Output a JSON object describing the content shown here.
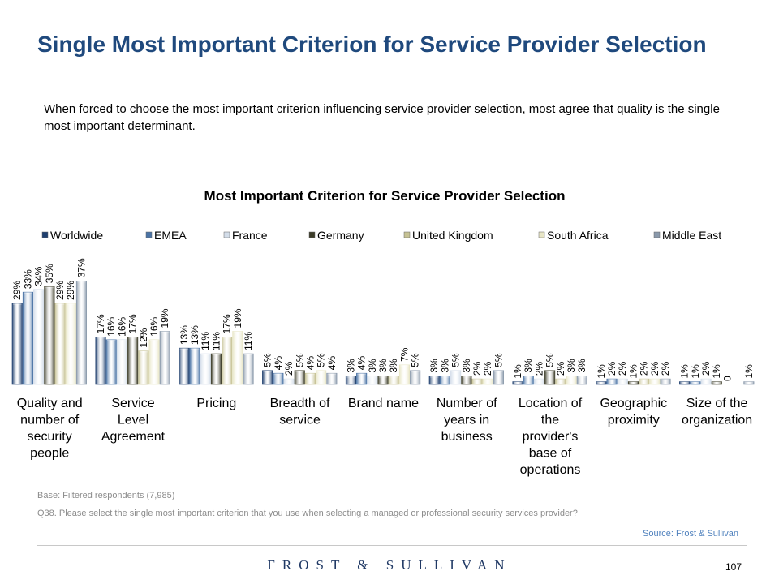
{
  "page": {
    "title": "Single Most Important Criterion for Service Provider Selection",
    "subtitle": "When forced to choose the most important criterion influencing service provider selection, most agree that quality is the single most important determinant.",
    "base_note": "Base: Filtered respondents (7,985)",
    "question_note": "Q38. Please select the single most important criterion that you use when  selecting a managed or professional security services provider?",
    "source": "Source: Frost & Sullivan",
    "brand": "FROST & SULLIVAN",
    "page_number": "107"
  },
  "chart_data": {
    "type": "bar",
    "title": "Most Important Criterion for Service Provider Selection",
    "categories": [
      "Quality and number of security people",
      "Service Level Agreement",
      "Pricing",
      "Breadth of service",
      "Brand name",
      "Number of years in business",
      "Location of the provider's base of operations",
      "Geographic proximity",
      "Size of the organization"
    ],
    "category_lines": [
      [
        "Quality and",
        "number of",
        "security",
        "people"
      ],
      [
        "Service",
        "Level",
        "Agreement"
      ],
      [
        "Pricing"
      ],
      [
        "Breadth of",
        "service"
      ],
      [
        "Brand name"
      ],
      [
        "Number of",
        "years in",
        "business"
      ],
      [
        "Location of",
        "the",
        "provider's",
        "base of",
        "operations"
      ],
      [
        "Geographic",
        "proximity"
      ],
      [
        "Size of the",
        "organization"
      ]
    ],
    "series": [
      {
        "name": "Worldwide",
        "color": "#1f3f6e",
        "values": [
          29,
          17,
          13,
          5,
          3,
          3,
          1,
          1,
          1
        ],
        "labels": [
          "29%",
          "17%",
          "13%",
          "5%",
          "3%",
          "3%",
          "1%",
          "1%",
          "1%"
        ]
      },
      {
        "name": "EMEA",
        "color": "#4a73a5",
        "values": [
          33,
          16,
          13,
          4,
          4,
          3,
          3,
          2,
          1
        ],
        "labels": [
          "33%",
          "16%",
          "13%",
          "4%",
          "4%",
          "3%",
          "3%",
          "2%",
          "1%"
        ]
      },
      {
        "name": "France",
        "color": "#d3dde9",
        "values": [
          34,
          16,
          11,
          2,
          3,
          5,
          2,
          2,
          2
        ],
        "labels": [
          "34%",
          "16%",
          "11%",
          "2%",
          "3%",
          "5%",
          "2%",
          "2%",
          "2%"
        ]
      },
      {
        "name": "Germany",
        "color": "#3c3c28",
        "values": [
          35,
          17,
          11,
          5,
          3,
          3,
          5,
          1,
          1
        ],
        "labels": [
          "35%",
          "17%",
          "11%",
          "5%",
          "3%",
          "3%",
          "5%",
          "1%",
          "1%"
        ]
      },
      {
        "name": "United Kingdom",
        "color": "#c6c294",
        "values": [
          29,
          12,
          17,
          4,
          3,
          2,
          2,
          2,
          0
        ],
        "labels": [
          "29%",
          "12%",
          "17%",
          "4%",
          "3%",
          "2%",
          "2%",
          "2%",
          "0"
        ]
      },
      {
        "name": "South Africa",
        "color": "#e8e6c6",
        "values": [
          29,
          16,
          19,
          5,
          7,
          2,
          3,
          2,
          0
        ],
        "labels": [
          "29%",
          "16%",
          "19%",
          "5%",
          "7%",
          "2%",
          "3%",
          "2%",
          ""
        ]
      },
      {
        "name": "Middle East",
        "color": "#8a99ab",
        "values": [
          37,
          19,
          11,
          4,
          5,
          5,
          3,
          2,
          1
        ],
        "labels": [
          "37%",
          "19%",
          "11%",
          "4%",
          "5%",
          "5%",
          "3%",
          "2%",
          "1%"
        ]
      }
    ],
    "ylim": [
      0,
      40
    ],
    "grid": false,
    "legend_position": "top",
    "xlabel": "",
    "ylabel": ""
  }
}
